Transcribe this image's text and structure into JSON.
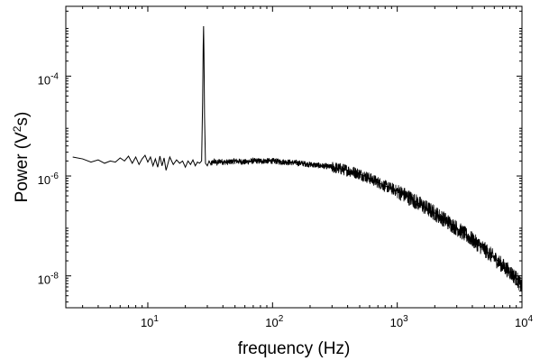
{
  "chart_data": {
    "type": "line",
    "title": "",
    "xlabel": "frequency (Hz)",
    "ylabel_parts": {
      "prefix": "Power (V",
      "superscript": "2",
      "suffix": "s)"
    },
    "x_scale": "log",
    "y_scale": "log",
    "xlim": [
      2.2,
      10000
    ],
    "ylim": [
      2.3e-09,
      0.0025
    ],
    "grid": false,
    "x_ticks": [
      {
        "value": 10,
        "base": "10",
        "exp": "1"
      },
      {
        "value": 100,
        "base": "10",
        "exp": "2"
      },
      {
        "value": 1000,
        "base": "10",
        "exp": "3"
      },
      {
        "value": 10000,
        "base": "10",
        "exp": "4"
      }
    ],
    "y_ticks": [
      {
        "value": 1e-08,
        "base": "10",
        "exp": "-8"
      },
      {
        "value": 1e-06,
        "base": "10",
        "exp": "-6"
      },
      {
        "value": 0.0001,
        "base": "10",
        "exp": "-4"
      }
    ],
    "series": [
      {
        "color": "#000000",
        "x": [
          2.5,
          3.0,
          3.5,
          4.0,
          4.5,
          5.0,
          5.5,
          6.0,
          6.5,
          7.0,
          7.5,
          8.0,
          8.5,
          9.0,
          9.5,
          10.0,
          10.5,
          11.0,
          11.5,
          12.0,
          12.5,
          13.0,
          13.5,
          14.0,
          15.0,
          16.0,
          17.0,
          18.0,
          19.0,
          20.0,
          21.0,
          22.0,
          23.0,
          24.0,
          25.0,
          26.0,
          27.0,
          27.5,
          27.8,
          28.0,
          28.2,
          28.5,
          29.0,
          30.0,
          31.0,
          32.0,
          34.0,
          36.0,
          38.0,
          40.0,
          45.0,
          50.0,
          60.0,
          70.0,
          80.0,
          100.0,
          130.0,
          170.0,
          200.0,
          250.0,
          300.0,
          400.0,
          500.0,
          600.0,
          700.0,
          800.0,
          1000.0,
          1200.0,
          1500.0,
          2000.0,
          2500.0,
          3000.0,
          4000.0,
          5000.0,
          6000.0,
          7000.0,
          8000.0,
          9000.0,
          10000.0
        ],
        "y": [
          2.4e-06,
          2.2e-06,
          1.9e-06,
          2.1e-06,
          1.8e-06,
          2e-06,
          1.9e-06,
          2.3e-06,
          2e-06,
          2.5e-06,
          1.8e-06,
          2.4e-06,
          1.7e-06,
          2.2e-06,
          2.6e-06,
          1.9e-06,
          2.4e-06,
          1.6e-06,
          2.2e-06,
          1.5e-06,
          2.5e-06,
          1.6e-06,
          2.3e-06,
          1.3e-06,
          2.4e-06,
          1.7e-06,
          2.1e-06,
          1.8e-06,
          2e-06,
          1.5e-06,
          2e-06,
          1.7e-06,
          2.1e-06,
          1.6e-06,
          1.9e-06,
          1.8e-06,
          2e-06,
          3e-05,
          0.0004,
          0.001,
          0.0003,
          1.5e-05,
          1.8e-06,
          1.6e-06,
          2e-06,
          1.7e-06,
          2e-06,
          1.8e-06,
          2e-06,
          1.9e-06,
          1.9e-06,
          2e-06,
          1.9e-06,
          2e-06,
          2e-06,
          2e-06,
          1.9e-06,
          1.8e-06,
          1.7e-06,
          1.6e-06,
          1.5e-06,
          1.3e-06,
          1.1e-06,
          9e-07,
          7.5e-07,
          6.3e-07,
          5e-07,
          3.9e-07,
          2.8e-07,
          1.8e-07,
          1.25e-07,
          9e-08,
          5.3e-08,
          3.4e-08,
          2.3e-08,
          1.6e-08,
          1.2e-08,
          9e-09,
          6e-09
        ]
      }
    ]
  }
}
